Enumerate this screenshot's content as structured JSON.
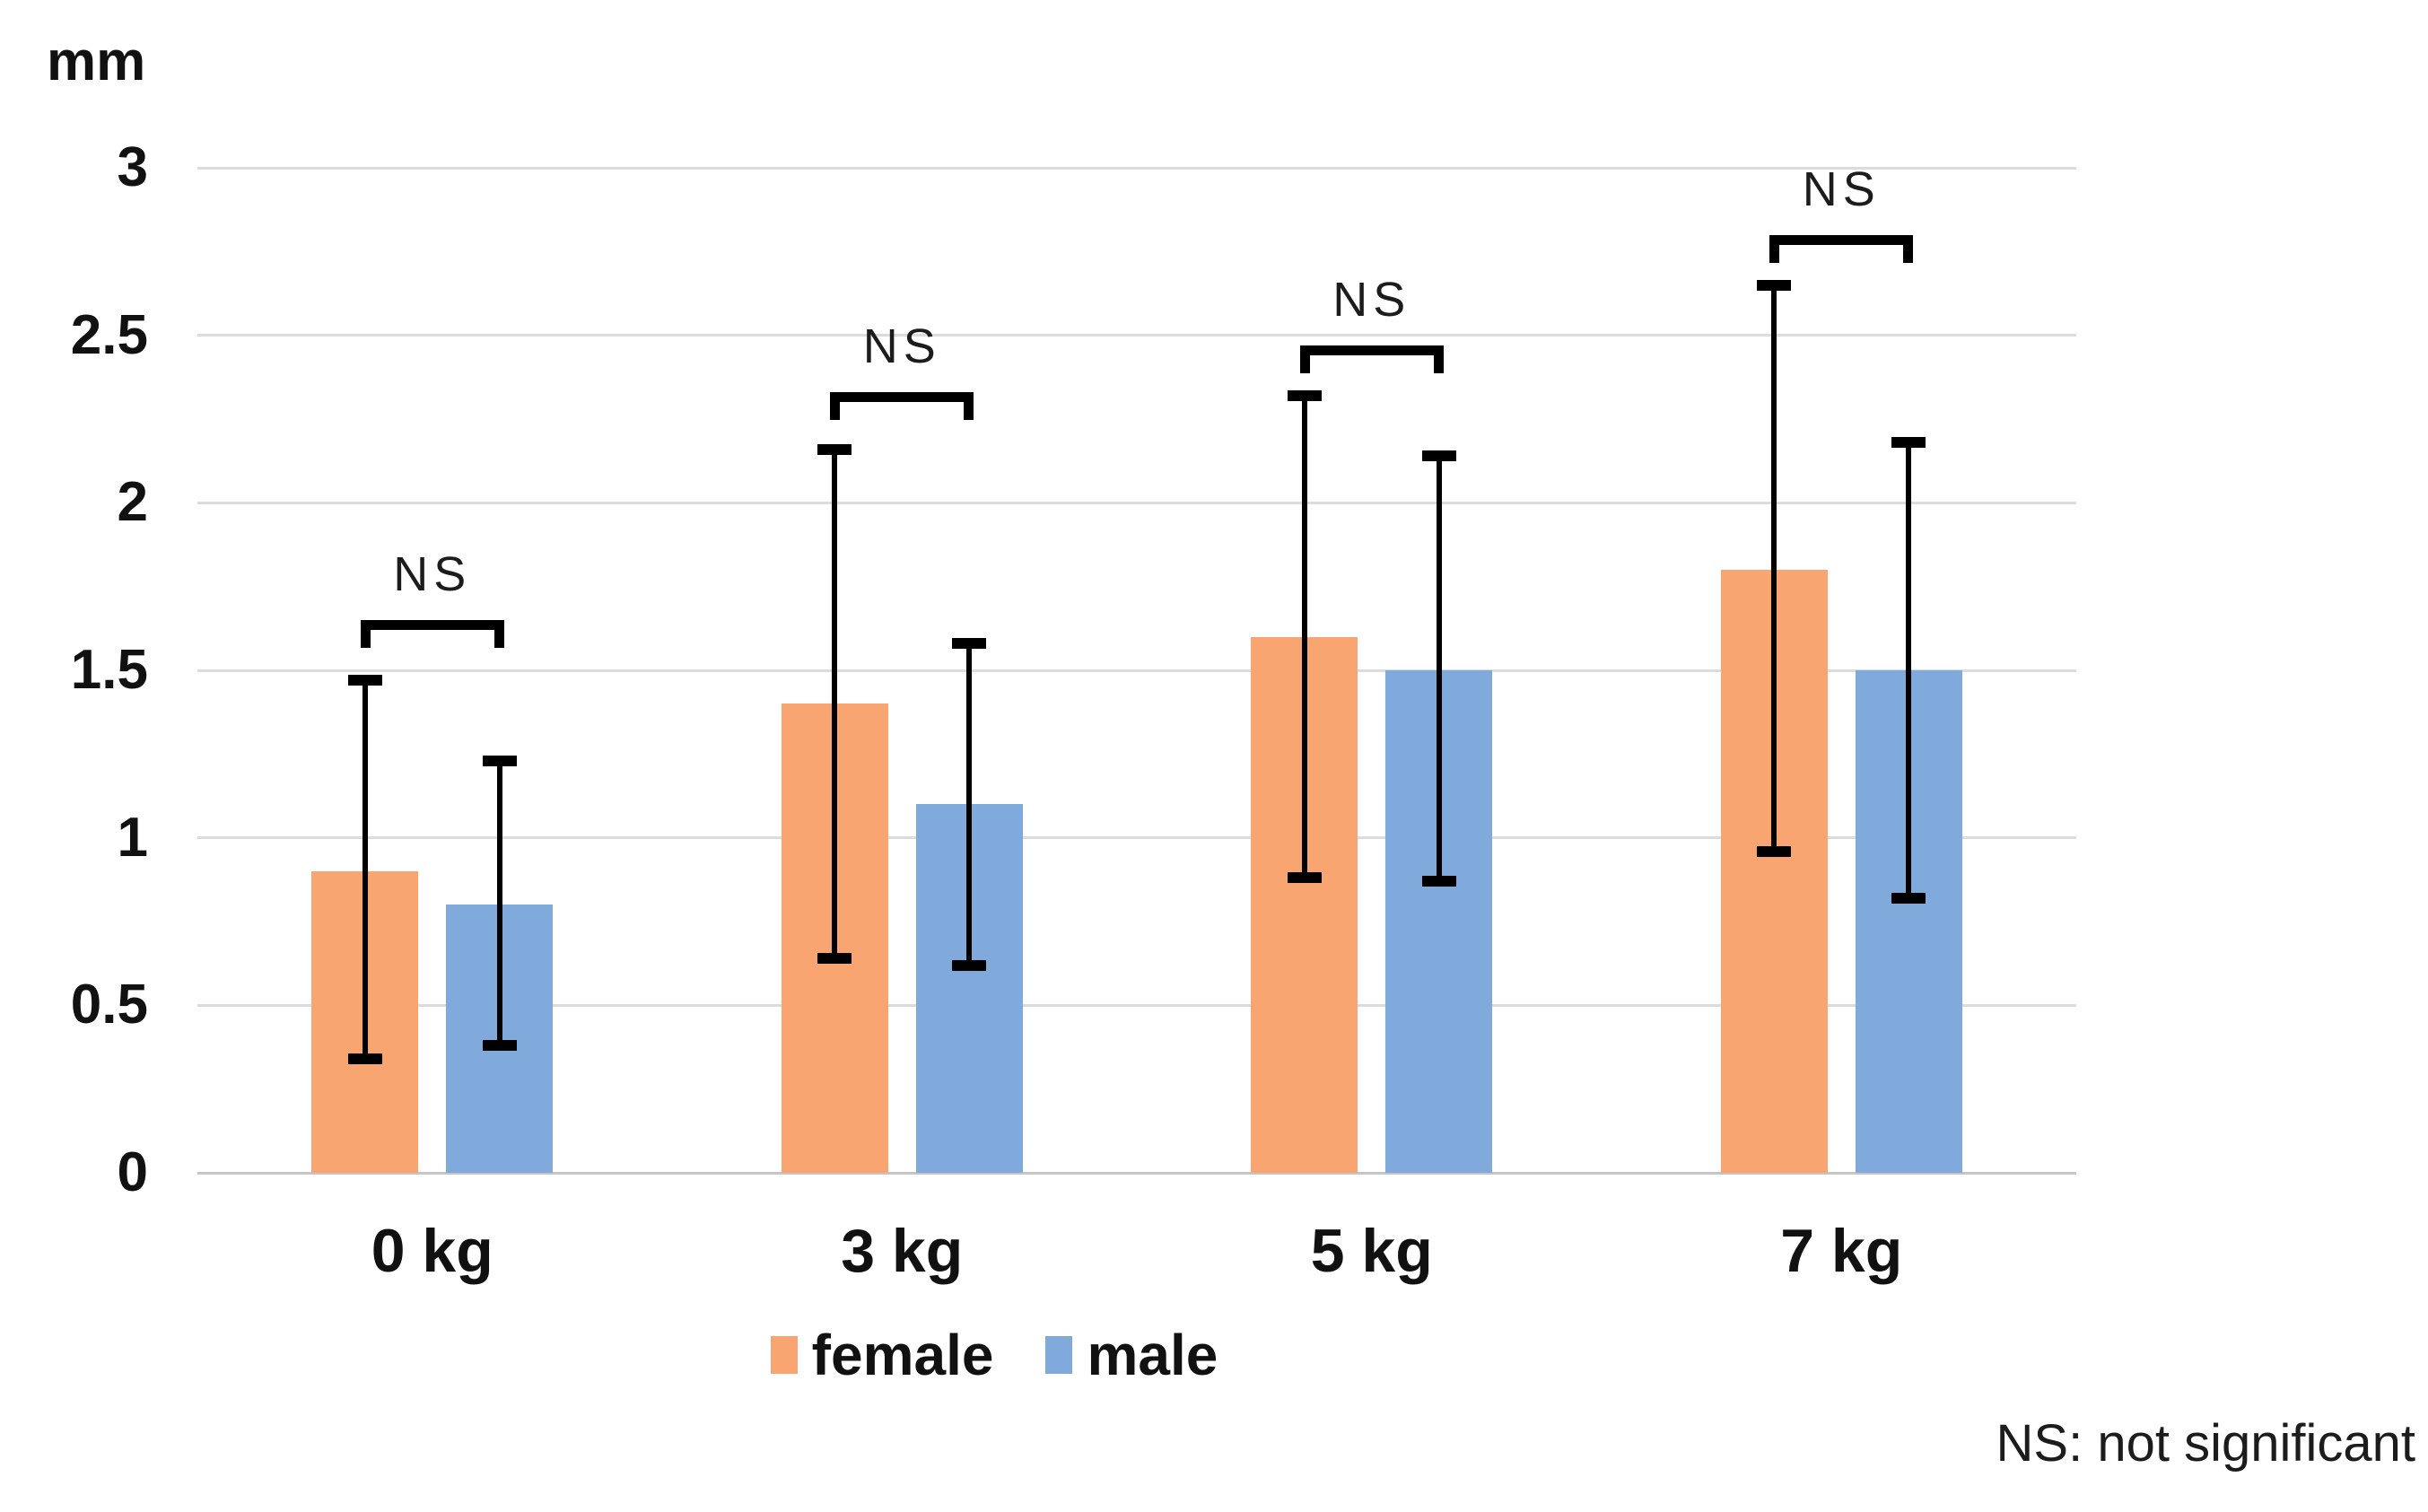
{
  "chart_data": {
    "type": "bar",
    "unit_label": "mm",
    "categories": [
      "0 kg",
      "3 kg",
      "5 kg",
      "7 kg"
    ],
    "series": [
      {
        "name": "female",
        "color": "#F8A572",
        "values": [
          0.9,
          1.4,
          1.6,
          1.8
        ],
        "error_low": [
          0.34,
          0.64,
          0.88,
          0.96
        ],
        "error_high": [
          1.47,
          2.16,
          2.32,
          2.65
        ]
      },
      {
        "name": "male",
        "color": "#81AADC",
        "values": [
          0.8,
          1.1,
          1.5,
          1.5
        ],
        "error_low": [
          0.38,
          0.62,
          0.87,
          0.82
        ],
        "error_high": [
          1.23,
          1.58,
          2.14,
          2.18
        ]
      }
    ],
    "ylim": [
      0,
      3
    ],
    "yticks": [
      3,
      2.5,
      2,
      1.5,
      1,
      0.5,
      0
    ],
    "grid": true,
    "legend_position": "bottom",
    "significance_brackets": [
      {
        "label": "NS",
        "category": "0 kg",
        "y_top": 1.65
      },
      {
        "label": "NS",
        "category": "3 kg",
        "y_top": 2.33
      },
      {
        "label": "NS",
        "category": "5 kg",
        "y_top": 2.47
      },
      {
        "label": "NS",
        "category": "7 kg",
        "y_top": 2.8
      }
    ],
    "footnote": "NS: not significant",
    "colors": {
      "gridline": "#dcdcdc",
      "axis_line": "#c6c6c6",
      "error_bar": "#000000",
      "text": "#111111"
    }
  }
}
